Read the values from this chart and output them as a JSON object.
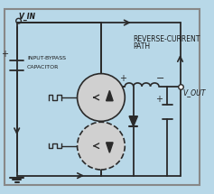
{
  "bg_color": "#b8d8e8",
  "border_color": "#888888",
  "line_color": "#2a2a2a",
  "arrow_color": "#1a1a1a",
  "circle_color": "#cccccc",
  "text_color": "#1a1a1a",
  "vin_label": "V_IN",
  "vout_label": "V_OUT",
  "rc_label1": "REVERSE-CURRENT",
  "rc_label2": "PATH",
  "cap_label1": "INPUT-BYPASS",
  "cap_label2": "CAPACITOR",
  "fig_width": 2.37,
  "fig_height": 2.15,
  "dpi": 100
}
